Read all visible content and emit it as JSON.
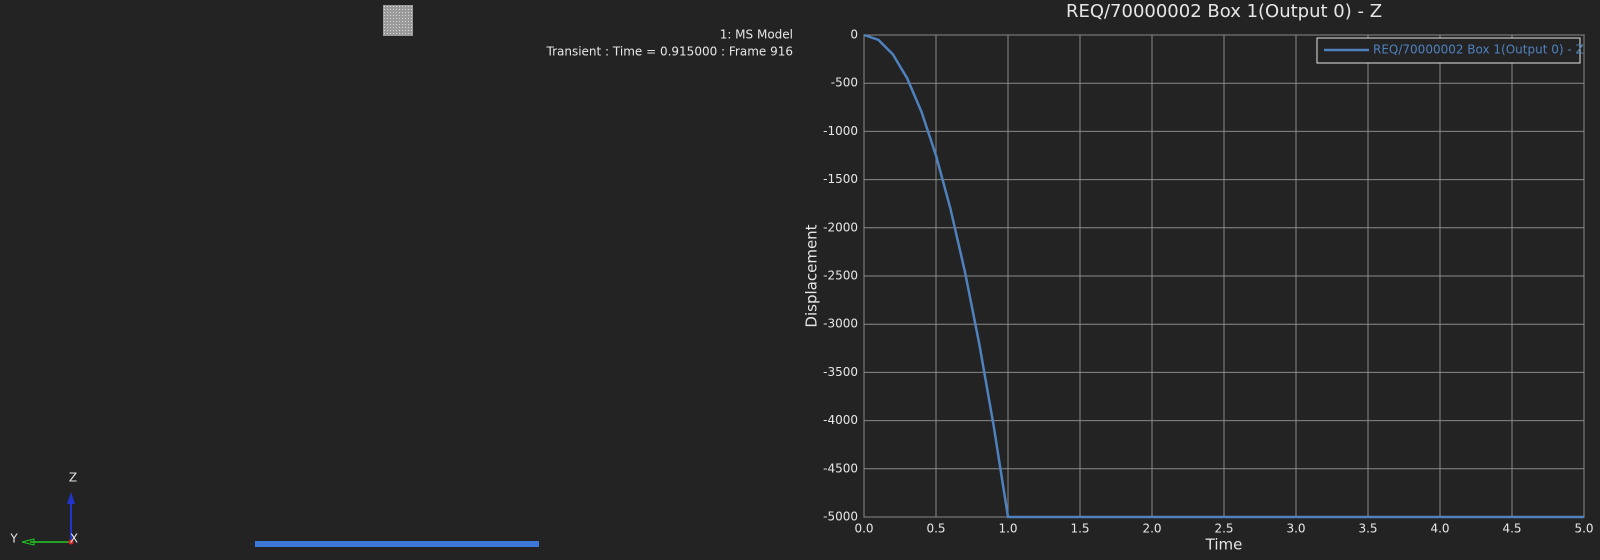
{
  "viewport": {
    "model_label": "1: MS Model",
    "time_label": "Transient : Time = 0.915000 : Frame 916",
    "triad": {
      "z": "Z",
      "y": "Y",
      "x": "X"
    }
  },
  "chart_data": {
    "type": "line",
    "title": "REQ/70000002 Box 1(Output 0) - Z",
    "x_label": "Time",
    "y_label": "Displacement",
    "x": [
      0.0,
      0.1,
      0.2,
      0.3,
      0.4,
      0.5,
      0.6,
      0.7,
      0.8,
      0.9,
      1.0,
      5.0
    ],
    "series": [
      {
        "name": "REQ/70000002 Box 1(Output 0) - Z",
        "color": "#4f81bd",
        "values": [
          0,
          -50,
          -200,
          -450,
          -800,
          -1250,
          -1800,
          -2450,
          -3200,
          -4050,
          -5000,
          -5000
        ]
      }
    ],
    "xlim": [
      0,
      5
    ],
    "ylim": [
      -5000,
      0
    ],
    "xticks": [
      {
        "value": 0,
        "label": "0.0"
      },
      {
        "value": 0.5,
        "label": "0.5"
      },
      {
        "value": 1,
        "label": "1.0"
      },
      {
        "value": 1.5,
        "label": "1.5"
      },
      {
        "value": 2,
        "label": "2.0"
      },
      {
        "value": 2.5,
        "label": "2.5"
      },
      {
        "value": 3,
        "label": "3.0"
      },
      {
        "value": 3.5,
        "label": "3.5"
      },
      {
        "value": 4,
        "label": "4.0"
      },
      {
        "value": 4.5,
        "label": "4.5"
      },
      {
        "value": 5,
        "label": "5.0"
      }
    ],
    "yticks": [
      0,
      -500,
      -1000,
      -1500,
      -2000,
      -2500,
      -3000,
      -3500,
      -4000,
      -4500,
      -5000
    ],
    "grid": true,
    "legend": "upper right"
  }
}
